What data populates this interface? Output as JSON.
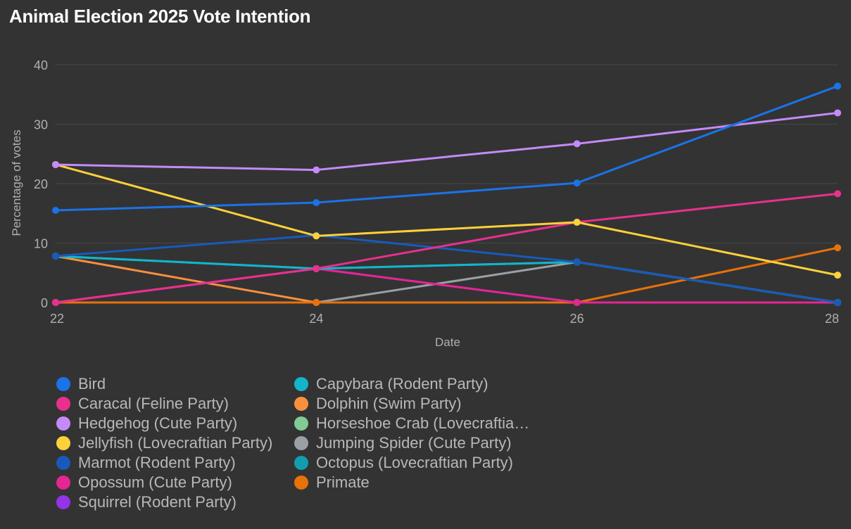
{
  "chart_data": {
    "type": "line",
    "title": "Animal Election 2025 Vote Intention",
    "xlabel": "Date",
    "ylabel": "Percentage of votes",
    "x": [
      22,
      24,
      26,
      28
    ],
    "x_tick_labels": [
      "22",
      "24",
      "26",
      "28"
    ],
    "xlim": [
      22,
      28
    ],
    "ylim": [
      0,
      40
    ],
    "y_ticks": [
      0,
      10,
      20,
      30,
      40
    ],
    "grid": true,
    "legend_position": "bottom",
    "series": [
      {
        "name": "Bird",
        "color": "#1a73e8",
        "values": [
          15.5,
          16.8,
          20.1,
          36.4
        ]
      },
      {
        "name": "Caracal (Feline Party)",
        "color": "#e8308c",
        "values": [
          0,
          5.7,
          13.5,
          18.3
        ]
      },
      {
        "name": "Hedgehog (Cute Party)",
        "color": "#c58af9",
        "values": [
          23.2,
          22.3,
          26.7,
          31.9
        ]
      },
      {
        "name": "Jellyfish (Lovecraftian Party)",
        "color": "#fdd13a",
        "values": [
          23.2,
          11.2,
          13.5,
          4.6
        ]
      },
      {
        "name": "Marmot (Rodent Party)",
        "color": "#185abc",
        "values": [
          7.8,
          11.3,
          6.8,
          0
        ]
      },
      {
        "name": "Opossum (Cute Party)",
        "color": "#e52592",
        "values": [
          0,
          5.7,
          0,
          0
        ]
      },
      {
        "name": "Squirrel (Rodent Party)",
        "color": "#9334e6",
        "values": [
          0,
          5.7,
          0,
          0
        ]
      },
      {
        "name": "Capybara (Rodent Party)",
        "color": "#12b5cb",
        "values": [
          7.8,
          5.7,
          6.8,
          0
        ]
      },
      {
        "name": "Dolphin (Swim Party)",
        "color": "#fa903e",
        "values": [
          7.8,
          0,
          0,
          0
        ]
      },
      {
        "name": "Horseshoe Crab (Lovecraftia…",
        "color": "#81c995",
        "values": [
          0,
          0,
          0,
          0
        ]
      },
      {
        "name": "Jumping Spider (Cute Party)",
        "color": "#9aa0a6",
        "values": [
          0,
          0,
          6.8,
          0
        ]
      },
      {
        "name": "Octopus (Lovecraftian Party)",
        "color": "#129eaf",
        "values": [
          7.8,
          5.7,
          6.8,
          0
        ]
      },
      {
        "name": "Primate",
        "color": "#e8710a",
        "values": [
          0,
          0,
          0,
          9.2
        ]
      }
    ],
    "draw_order": [
      9,
      10,
      8,
      12,
      6,
      5,
      11,
      7,
      4,
      1,
      3,
      2,
      0
    ]
  }
}
